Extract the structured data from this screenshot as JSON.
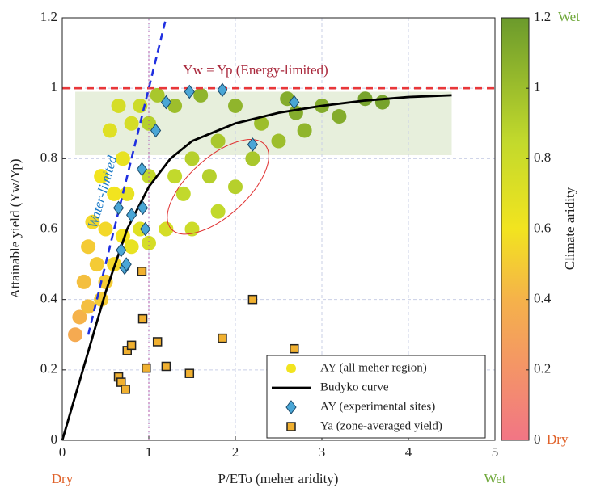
{
  "chart_data": {
    "type": "scatter",
    "xlabel": "P/ETo (meher aridity)",
    "ylabel": "Attainable yield (Yw/Yp)",
    "xlim": [
      0,
      5
    ],
    "xticks": [
      0,
      1,
      2,
      3,
      4,
      5
    ],
    "ylim": [
      0,
      1.2
    ],
    "yticks": [
      0,
      0.2,
      0.4,
      0.6,
      0.8,
      1,
      1.2
    ],
    "grid": true,
    "x_end_labels": {
      "low": "Dry",
      "high": "Wet"
    },
    "colorbar": {
      "label": "Climate aridity",
      "ylim": [
        0,
        1.2
      ],
      "yticks": [
        0,
        0.2,
        0.4,
        0.6,
        0.8,
        1,
        1.2
      ],
      "end_labels": {
        "low": "Dry",
        "high": "Wet"
      },
      "colormap": [
        {
          "value": 0,
          "color": "#f27585"
        },
        {
          "value": 0.4,
          "color": "#f5b24a"
        },
        {
          "value": 0.6,
          "color": "#f2e41f"
        },
        {
          "value": 0.85,
          "color": "#c2d92c"
        },
        {
          "value": 1.2,
          "color": "#6b9a2c"
        }
      ]
    },
    "band": {
      "xlim": [
        0.15,
        4.5
      ],
      "ylim": [
        0.81,
        0.99
      ],
      "color": "#e7efdc"
    },
    "reference_lines": [
      {
        "label": "Water-limited",
        "x": [
          0.3,
          1.2
        ],
        "y": [
          0.3,
          1.2
        ],
        "color": "#1f2fe0"
      },
      {
        "label": "Yw = Yp (Energy-limited)",
        "x": [
          0,
          5
        ],
        "y": [
          1,
          1
        ],
        "color": "#e8373a"
      },
      {
        "x": [
          1,
          1
        ],
        "y": [
          0,
          1.2
        ],
        "color": "#b05aa8"
      }
    ],
    "series": [
      {
        "name": "AY (all meher region)",
        "type": "scatter",
        "marker": "circle",
        "color": "#f2e41f",
        "x": [
          0.15,
          0.2,
          0.25,
          0.3,
          0.35,
          0.45,
          0.55,
          0.65,
          0.3,
          0.4,
          0.5,
          0.6,
          0.7,
          0.8,
          0.9,
          0.5,
          0.6,
          0.7,
          0.8,
          0.9,
          1.0,
          1.0,
          1.0,
          1.1,
          1.2,
          1.3,
          1.3,
          1.5,
          1.5,
          1.6,
          1.8,
          1.8,
          2.0,
          2.0,
          2.2,
          2.3,
          2.5,
          2.6,
          2.8,
          3.0,
          3.2,
          3.5,
          3.7,
          2.7,
          1.4,
          1.7,
          0.75,
          0.45
        ],
        "values": [
          0.3,
          0.35,
          0.45,
          0.55,
          0.62,
          0.75,
          0.88,
          0.95,
          0.38,
          0.5,
          0.6,
          0.7,
          0.8,
          0.9,
          0.95,
          0.45,
          0.5,
          0.58,
          0.55,
          0.6,
          0.56,
          0.75,
          0.9,
          0.98,
          0.6,
          0.75,
          0.95,
          0.6,
          0.8,
          0.98,
          0.65,
          0.85,
          0.72,
          0.95,
          0.8,
          0.9,
          0.85,
          0.97,
          0.88,
          0.95,
          0.92,
          0.97,
          0.96,
          0.93,
          0.7,
          0.75,
          0.7,
          0.4
        ],
        "color_values": [
          0.35,
          0.4,
          0.45,
          0.5,
          0.55,
          0.6,
          0.7,
          0.75,
          0.45,
          0.5,
          0.55,
          0.6,
          0.65,
          0.75,
          0.8,
          0.5,
          0.55,
          0.6,
          0.65,
          0.7,
          0.75,
          0.85,
          0.9,
          0.95,
          0.75,
          0.85,
          1.0,
          0.8,
          0.9,
          1.05,
          0.85,
          0.95,
          0.9,
          1.05,
          0.95,
          1.0,
          1.0,
          1.1,
          1.05,
          1.1,
          1.1,
          1.15,
          1.15,
          1.1,
          0.85,
          0.9,
          0.65,
          0.5
        ]
      },
      {
        "name": "Budyko curve",
        "type": "line",
        "color": "#000000",
        "x": [
          0,
          0.25,
          0.5,
          0.75,
          1,
          1.25,
          1.5,
          2,
          2.5,
          3,
          3.5,
          4,
          4.5
        ],
        "values": [
          0,
          0.21,
          0.42,
          0.6,
          0.72,
          0.8,
          0.85,
          0.9,
          0.93,
          0.95,
          0.965,
          0.975,
          0.98
        ]
      },
      {
        "name": "AY (experimental sites)",
        "type": "scatter",
        "marker": "diamond",
        "color": "#4aa6d6",
        "x": [
          0.65,
          0.68,
          0.72,
          0.74,
          0.8,
          0.92,
          0.93,
          0.96,
          1.08,
          1.2,
          1.47,
          1.85,
          2.2,
          2.68
        ],
        "values": [
          0.66,
          0.54,
          0.49,
          0.5,
          0.64,
          0.77,
          0.66,
          0.6,
          0.88,
          0.96,
          0.99,
          0.995,
          0.84,
          0.96
        ]
      },
      {
        "name": "Ya (zone-averaged yield)",
        "type": "scatter",
        "marker": "square",
        "color": "#f0b030",
        "x": [
          0.65,
          0.68,
          0.73,
          0.75,
          0.8,
          0.92,
          0.93,
          0.97,
          1.1,
          1.2,
          1.47,
          1.85,
          2.2,
          2.68
        ],
        "values": [
          0.18,
          0.165,
          0.145,
          0.255,
          0.27,
          0.48,
          0.345,
          0.205,
          0.28,
          0.21,
          0.19,
          0.29,
          0.4,
          0.26
        ]
      }
    ]
  }
}
